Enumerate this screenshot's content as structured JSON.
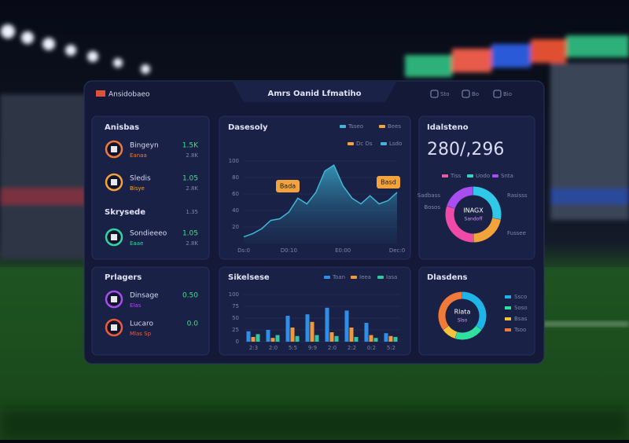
{
  "header": {
    "brand": "Ansidobaeo",
    "title": "Amrs Oanid Lfmatiho",
    "actions": [
      "Sto",
      "Bo",
      "Bio"
    ]
  },
  "roster": {
    "title": "Anisbas",
    "rows": [
      {
        "name": "Bingeyn",
        "note": "Eanaa",
        "value": "1.5K",
        "delta": "2.8K",
        "color": "#f07a3a"
      },
      {
        "name": "Sledis",
        "note": "Bisye",
        "value": "1.05",
        "delta": "2.8K",
        "color": "#f2a33c"
      }
    ],
    "section": "Skrysede",
    "section_value": "1.35",
    "rows2": [
      {
        "name": "Sondieeeo",
        "note": "Eaae",
        "value": "1.05",
        "delta": "2.8K",
        "color": "#2fd6a4"
      }
    ]
  },
  "players": {
    "title": "Prlagers",
    "rows": [
      {
        "name": "Dinsage",
        "note": "Elas",
        "value": "0.50",
        "color": "#a84df0"
      },
      {
        "name": "Lucaro",
        "note": "Mlas Sp",
        "value": "0.0",
        "color": "#f05a3a"
      }
    ]
  },
  "chart_data": [
    {
      "type": "area",
      "title": "Dasesoly",
      "legend": [
        {
          "name": "Tsseo",
          "color": "#3fb7d8"
        },
        {
          "name": "Bees",
          "color": "#f2a33c"
        },
        {
          "name": "Dc Ds",
          "color": "#f2a33c"
        },
        {
          "name": "Lsdo",
          "color": "#3fb7d8"
        }
      ],
      "categories": [
        "Ds:0",
        null,
        null,
        null,
        null,
        "D0:10",
        null,
        null,
        null,
        null,
        null,
        "E0:00",
        null,
        null,
        null,
        null,
        null,
        "Dec:0"
      ],
      "series": [
        {
          "name": "Tsseo",
          "color": "#3fb7d8",
          "values": [
            8,
            12,
            18,
            28,
            30,
            38,
            55,
            48,
            62,
            88,
            95,
            70,
            55,
            48,
            58,
            48,
            52,
            62
          ]
        }
      ],
      "ylim": [
        0,
        100
      ],
      "yticks": [
        20,
        40,
        60,
        80,
        100
      ],
      "annotations": [
        "Bada",
        "Basd"
      ]
    },
    {
      "type": "bar",
      "title": "Sikelsese",
      "categories": [
        "2:3",
        "2:0",
        "5:5",
        "9:9",
        "2:0",
        "2:2",
        "0:2",
        "5:2"
      ],
      "series": [
        {
          "name": "Toan",
          "color": "#2f8fe8",
          "values": [
            22,
            25,
            55,
            58,
            72,
            66,
            40,
            18
          ]
        },
        {
          "name": "Ieea",
          "color": "#f2983c",
          "values": [
            10,
            8,
            30,
            42,
            20,
            30,
            14,
            12
          ]
        },
        {
          "name": "Iasa",
          "color": "#2fc8a0",
          "values": [
            16,
            14,
            12,
            14,
            12,
            10,
            8,
            10
          ]
        }
      ],
      "ylim": [
        0,
        100
      ],
      "yticks": [
        0,
        25,
        50,
        75,
        100
      ]
    },
    {
      "type": "donut",
      "title": "Idalsteno",
      "total": "280/,296",
      "center": [
        "INAGX",
        "Sandoff"
      ],
      "legend": [
        {
          "name": "Tiss",
          "color": "#f05aa0"
        },
        {
          "name": "Uodo",
          "color": "#2fd6c8"
        },
        {
          "name": "Snta",
          "color": "#a84df0"
        }
      ],
      "categories": [
        "Sadbass",
        "Bosos",
        "Rasisss",
        "Fussee"
      ],
      "values": [
        28,
        22,
        30,
        20
      ],
      "colors": [
        "#2fc8e8",
        "#f2a33c",
        "#f04aa8",
        "#a84df0"
      ]
    },
    {
      "type": "donut",
      "title": "Dlasdens",
      "center": [
        "Rlata",
        "Slso"
      ],
      "categories": [
        "Ssco",
        "Soso",
        "Bsas",
        "Tsoo"
      ],
      "values": [
        35,
        20,
        10,
        35
      ],
      "colors": [
        "#1fb4e8",
        "#2fe0a0",
        "#f5c23a",
        "#f07a3a"
      ]
    }
  ]
}
